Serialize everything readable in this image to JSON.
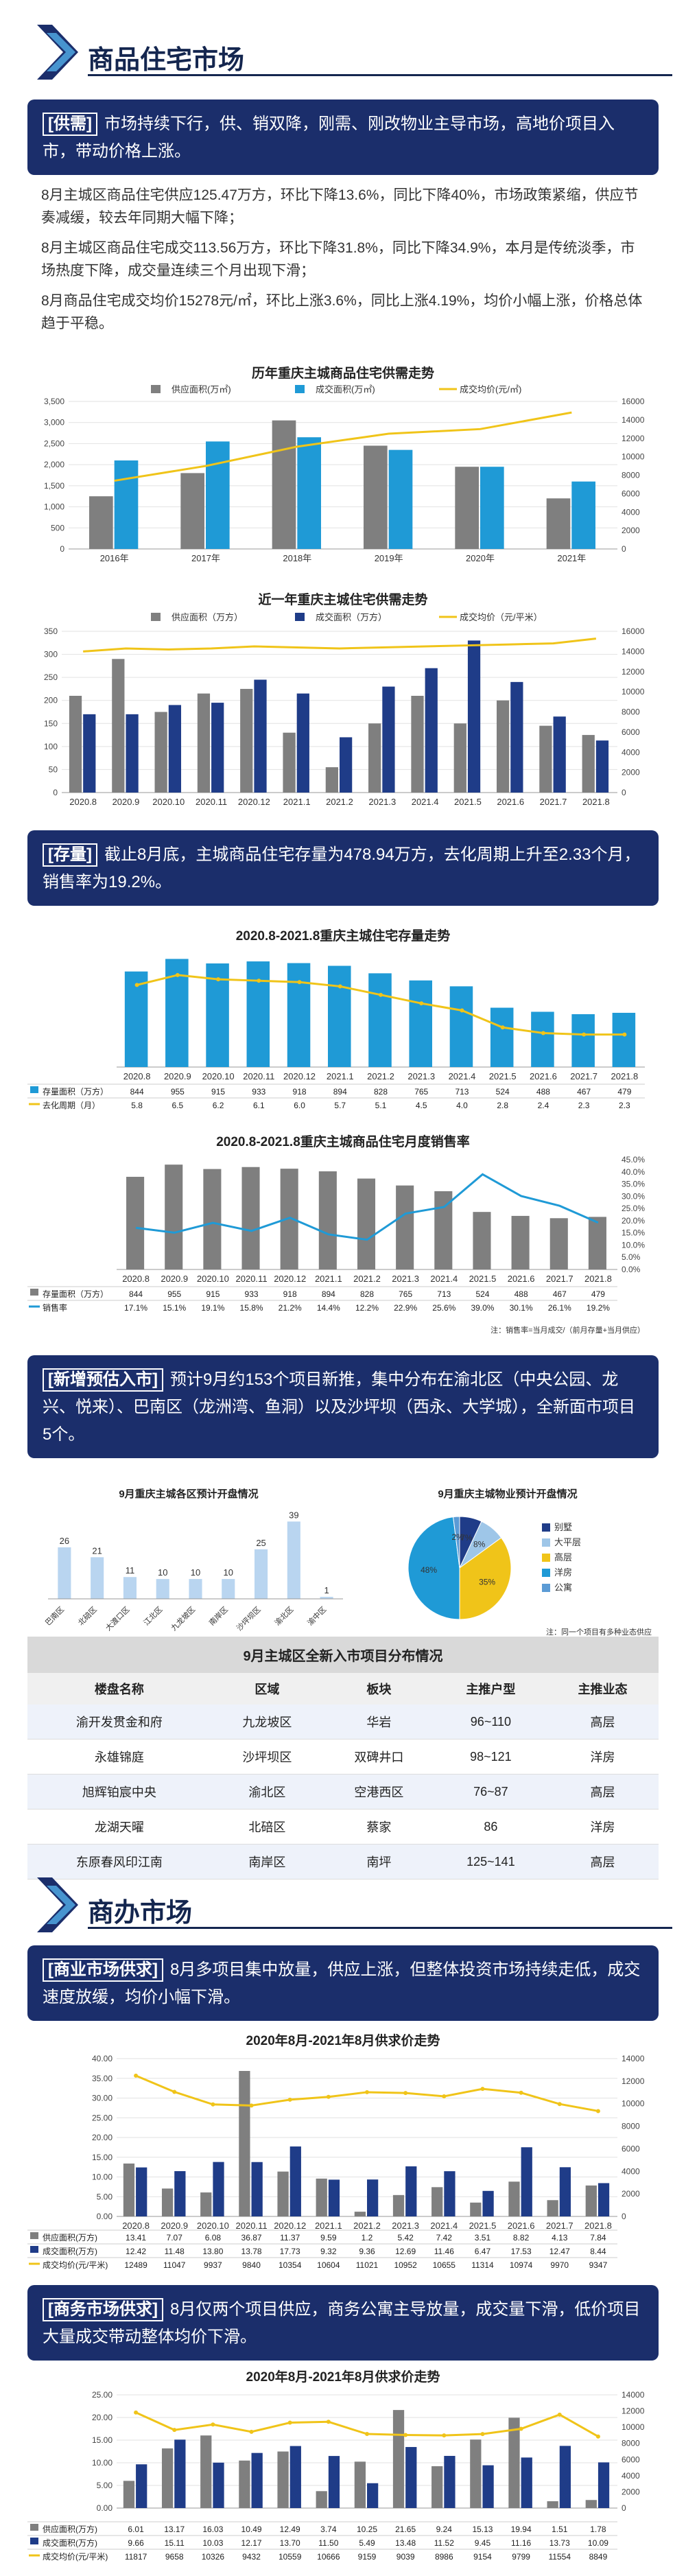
{
  "section1": {
    "title": "商品住宅市场",
    "supply_tag": "[供需]",
    "supply_text": "市场持续下行，供、销双降，刚需、刚改物业主导市场，高地价项目入市，带动价格上涨。",
    "para1": "8月主城区商品住宅供应125.47万方，环比下降13.6%，同比下降40%，市场政策紧缩，供应节奏减缓，较去年同期大幅下降；",
    "para2": "8月主城区商品住宅成交113.56万方，环比下降31.8%，同比下降34.9%，本月是传统淡季，市场热度下降，成交量连续三个月出现下滑；",
    "para3": "8月商品住宅成交均价15278元/㎡，环比上涨3.6%，同比上涨4.19%，均价小幅上涨，价格总体趋于平稳。",
    "stock_tag": "[存量]",
    "stock_text": "截止8月底，主城商品住宅存量为478.94万方，去化周期上升至2.33个月，销售率为19.2%。",
    "new_tag": "[新增预估入市]",
    "new_text": "预计9月约153个项目新推，集中分布在渝北区（中央公园、龙兴、悦来）、巴南区（龙洲湾、鱼洞）以及沙坪坝（西永、大学城），全新面市项目5个。"
  },
  "section2": {
    "title": "商办市场",
    "biz_tag": "[商业市场供求]",
    "biz_text": "8月多项目集中放量，供应上涨，但整体投资市场持续走低，成交速度放缓，均价小幅下滑。",
    "office_tag": "[商务市场供求]",
    "office_text": "8月仅两个项目供应，商务公寓主导放量，成交量下滑，低价项目大量成交带动整体均价下滑。"
  },
  "colors": {
    "navy": "#1b2e6b",
    "gray_bar": "#7f7f7f",
    "blue_bar": "#1f9ad6",
    "dark_blue_bar": "#1f3c88",
    "gold_line": "#f0c419"
  },
  "chart_data": [
    {
      "id": "yearly",
      "type": "bar",
      "title": "历年重庆主城商品住宅供需走势",
      "categories": [
        "2016年",
        "2017年",
        "2018年",
        "2019年",
        "2020年",
        "2021年"
      ],
      "series": [
        {
          "name": "供应面积(万㎡)",
          "values": [
            1250,
            1800,
            3050,
            2450,
            1950,
            1200
          ]
        },
        {
          "name": "成交面积(万㎡)",
          "values": [
            2100,
            2550,
            2650,
            2350,
            1950,
            1600
          ]
        },
        {
          "name": "成交均价(元/㎡)",
          "values": [
            7400,
            9000,
            11100,
            12500,
            13000,
            14800
          ],
          "axis": "right"
        }
      ],
      "ylim": [
        0,
        3500
      ],
      "y2lim": [
        0,
        16000
      ],
      "yticks": [
        "0",
        "500",
        "1,000",
        "1,500",
        "2,000",
        "2,500",
        "3,000",
        "3,500"
      ],
      "y2ticks": [
        "0",
        "2000",
        "4000",
        "6000",
        "8000",
        "10000",
        "12000",
        "14000",
        "16000"
      ]
    },
    {
      "id": "monthly",
      "type": "bar",
      "title": "近一年重庆主城住宅供需走势",
      "categories": [
        "2020.8",
        "2020.9",
        "2020.10",
        "2020.11",
        "2020.12",
        "2021.1",
        "2021.2",
        "2021.3",
        "2021.4",
        "2021.5",
        "2021.6",
        "2021.7",
        "2021.8"
      ],
      "series": [
        {
          "name": "供应面积（万方）",
          "values": [
            210,
            290,
            175,
            215,
            225,
            130,
            55,
            150,
            210,
            150,
            200,
            145,
            125
          ]
        },
        {
          "name": "成交面积（万方）",
          "values": [
            170,
            170,
            190,
            195,
            245,
            215,
            120,
            230,
            270,
            330,
            240,
            165,
            113
          ]
        },
        {
          "name": "成交均价（元/平米）",
          "values": [
            14000,
            14300,
            14200,
            14300,
            14500,
            14400,
            14300,
            14400,
            14500,
            14600,
            14700,
            14800,
            15278
          ],
          "axis": "right"
        }
      ],
      "ylim": [
        0,
        350
      ],
      "y2lim": [
        0,
        16000
      ],
      "yticks": [
        "0",
        "50",
        "100",
        "150",
        "200",
        "250",
        "300",
        "350"
      ],
      "y2ticks": [
        "0",
        "2000",
        "4000",
        "6000",
        "8000",
        "10000",
        "12000",
        "14000",
        "16000"
      ]
    },
    {
      "id": "stock",
      "type": "bar",
      "title": "2020.8-2021.8重庆主城住宅存量走势",
      "categories": [
        "2020.8",
        "2020.9",
        "2020.10",
        "2020.11",
        "2020.12",
        "2021.1",
        "2021.2",
        "2021.3",
        "2021.4",
        "2021.5",
        "2021.6",
        "2021.7",
        "2021.8"
      ],
      "series": [
        {
          "name": "存量面积（万方）",
          "values": [
            844,
            955,
            915,
            933,
            918,
            894,
            828,
            765,
            713,
            524,
            488,
            467,
            479
          ]
        },
        {
          "name": "去化周期（月）",
          "values": [
            5.8,
            6.5,
            6.2,
            6.1,
            6.0,
            5.7,
            5.1,
            4.5,
            4.0,
            2.8,
            2.4,
            2.3,
            2.3
          ],
          "axis": "right"
        }
      ],
      "ylim": [
        0,
        1000
      ],
      "y2lim": [
        0,
        8
      ]
    },
    {
      "id": "sales_rate",
      "type": "bar",
      "title": "2020.8-2021.8重庆主城商品住宅月度销售率",
      "categories": [
        "2020.8",
        "2020.9",
        "2020.10",
        "2020.11",
        "2020.12",
        "2021.1",
        "2021.2",
        "2021.3",
        "2021.4",
        "2021.5",
        "2021.6",
        "2021.7",
        "2021.8"
      ],
      "series": [
        {
          "name": "存量面积（万方）",
          "values": [
            844,
            955,
            915,
            933,
            918,
            894,
            828,
            765,
            713,
            524,
            488,
            467,
            479
          ]
        },
        {
          "name": "销售率",
          "values": [
            17.1,
            15.1,
            19.1,
            15.8,
            21.2,
            14.4,
            12.2,
            22.9,
            25.6,
            39.0,
            30.1,
            26.1,
            19.2
          ],
          "axis": "right"
        }
      ],
      "ylim": [
        0,
        1000
      ],
      "y2lim": [
        0,
        45
      ],
      "value_labels": [
        "17.1%",
        "15.1%",
        "19.1%",
        "15.8%",
        "21.2%",
        "14.4%",
        "12.2%",
        "22.9%",
        "25.6%",
        "39.0%",
        "30.1%",
        "26.1%",
        "19.2%"
      ],
      "y2ticks": [
        "0.0%",
        "5.0%",
        "10.0%",
        "15.0%",
        "20.0%",
        "25.0%",
        "30.0%",
        "35.0%",
        "40.0%",
        "45.0%"
      ],
      "note": "注：销售率=当月成交/（前月存量+当月供应）"
    },
    {
      "id": "district_new",
      "type": "bar",
      "title": "9月重庆主城各区预计开盘情况",
      "categories": [
        "巴南区",
        "北碚区",
        "大渡口区",
        "江北区",
        "九龙坡区",
        "南岸区",
        "沙坪坝区",
        "渝北区",
        "渝中区"
      ],
      "values": [
        26,
        21,
        11,
        10,
        10,
        10,
        25,
        39,
        1
      ],
      "ylim": [
        0,
        45
      ]
    },
    {
      "id": "type_pie",
      "type": "pie",
      "title": "9月重庆主城物业预计开盘情况",
      "labels": [
        "别墅",
        "大平层",
        "高层",
        "洋房",
        "公寓"
      ],
      "values": [
        7,
        8,
        35,
        48,
        2
      ],
      "value_labels": [
        "7%",
        "8%",
        "35%",
        "48%",
        "2%"
      ],
      "note": "注：同一个项目有多种业态供应"
    },
    {
      "id": "commercial",
      "type": "bar",
      "title": "2020年8月-2021年8月供求价走势",
      "categories": [
        "2020.8",
        "2020.9",
        "2020.10",
        "2020.11",
        "2020.12",
        "2021.1",
        "2021.2",
        "2021.3",
        "2021.4",
        "2021.5",
        "2021.6",
        "2021.7",
        "2021.8"
      ],
      "series": [
        {
          "name": "供应面积(万方)",
          "values": [
            13.41,
            7.07,
            6.08,
            36.87,
            11.37,
            9.59,
            1.2,
            5.42,
            7.42,
            3.51,
            8.82,
            4.13,
            7.84
          ]
        },
        {
          "name": "成交面积(万方)",
          "values": [
            12.42,
            11.48,
            13.8,
            13.78,
            17.73,
            9.32,
            9.36,
            12.69,
            11.46,
            6.47,
            17.53,
            12.47,
            8.44
          ]
        },
        {
          "name": "成交均价(元/平米)",
          "values": [
            12489,
            11047,
            9937,
            9840,
            10354,
            10604,
            11021,
            10952,
            10655,
            11314,
            10974,
            9970,
            9347
          ],
          "axis": "right"
        }
      ],
      "ylim": [
        0,
        40
      ],
      "y2lim": [
        0,
        14000
      ],
      "yticks": [
        "0.00",
        "5.00",
        "10.00",
        "15.00",
        "20.00",
        "25.00",
        "30.00",
        "35.00",
        "40.00"
      ],
      "y2ticks": [
        "0",
        "2000",
        "4000",
        "6000",
        "8000",
        "10000",
        "12000",
        "14000"
      ]
    },
    {
      "id": "office",
      "type": "bar",
      "title": "2020年8月-2021年8月供求价走势",
      "categories": [
        "2020.8",
        "2020.9",
        "2020.10",
        "2020.11",
        "2020.12",
        "2021.1",
        "2021.2",
        "2021.3",
        "2021.4",
        "2021.5",
        "2021.6",
        "2021.7",
        "2021.8"
      ],
      "series": [
        {
          "name": "供应面积(万方)",
          "values": [
            6.01,
            13.17,
            16.03,
            10.49,
            12.49,
            3.74,
            10.25,
            21.65,
            9.24,
            15.13,
            19.94,
            1.51,
            1.78
          ]
        },
        {
          "name": "成交面积(万方)",
          "values": [
            9.66,
            15.11,
            10.03,
            12.17,
            13.7,
            11.5,
            5.49,
            13.48,
            11.52,
            9.45,
            11.16,
            13.73,
            10.09
          ]
        },
        {
          "name": "成交均价(元/平米)",
          "values": [
            11817,
            9658,
            10326,
            9432,
            10559,
            10666,
            9159,
            9039,
            8986,
            9154,
            9799,
            11554,
            8849
          ],
          "axis": "right"
        }
      ],
      "ylim": [
        0,
        25
      ],
      "y2lim": [
        0,
        14000
      ],
      "yticks": [
        "0.00",
        "5.00",
        "10.00",
        "15.00",
        "20.00",
        "25.00"
      ],
      "y2ticks": [
        "0",
        "2000",
        "4000",
        "6000",
        "8000",
        "10000",
        "12000",
        "14000"
      ]
    }
  ],
  "chart_tables": {
    "stock": {
      "row1_label": "存量面积（万方）",
      "row1": [
        "844",
        "955",
        "915",
        "933",
        "918",
        "894",
        "828",
        "765",
        "713",
        "524",
        "488",
        "467",
        "479"
      ],
      "row2_label": "去化周期（月）",
      "row2": [
        "5.8",
        "6.5",
        "6.2",
        "6.1",
        "6.0",
        "5.7",
        "5.1",
        "4.5",
        "4.0",
        "2.8",
        "2.4",
        "2.3",
        "2.3"
      ]
    },
    "sales_rate": {
      "row1_label": "存量面积（万方）",
      "row1": [
        "844",
        "955",
        "915",
        "933",
        "918",
        "894",
        "828",
        "765",
        "713",
        "524",
        "488",
        "467",
        "479"
      ],
      "row2_label": "销售率",
      "row2": [
        "17.1%",
        "15.1%",
        "19.1%",
        "15.8%",
        "21.2%",
        "14.4%",
        "12.2%",
        "22.9%",
        "25.6%",
        "39.0%",
        "30.1%",
        "26.1%",
        "19.2%"
      ]
    },
    "commercial": {
      "row1_label": "供应面积(万方)",
      "row1": [
        "13.41",
        "7.07",
        "6.08",
        "36.87",
        "11.37",
        "9.59",
        "1.2",
        "5.42",
        "7.42",
        "3.51",
        "8.82",
        "4.13",
        "7.84"
      ],
      "row2_label": "成交面积(万方)",
      "row2": [
        "12.42",
        "11.48",
        "13.80",
        "13.78",
        "17.73",
        "9.32",
        "9.36",
        "12.69",
        "11.46",
        "6.47",
        "17.53",
        "12.47",
        "8.44"
      ],
      "row3_label": "成交均价(元/平米)",
      "row3": [
        "12489",
        "11047",
        "9937",
        "9840",
        "10354",
        "10604",
        "11021",
        "10952",
        "10655",
        "11314",
        "10974",
        "9970",
        "9347"
      ]
    },
    "office": {
      "row1_label": "供应面积(万方)",
      "row1": [
        "6.01",
        "13.17",
        "16.03",
        "10.49",
        "12.49",
        "3.74",
        "10.25",
        "21.65",
        "9.24",
        "15.13",
        "19.94",
        "1.51",
        "1.78"
      ],
      "row2_label": "成交面积(万方)",
      "row2": [
        "9.66",
        "15.11",
        "10.03",
        "12.17",
        "13.70",
        "11.50",
        "5.49",
        "13.48",
        "11.52",
        "9.45",
        "11.16",
        "13.73",
        "10.09"
      ],
      "row3_label": "成交均价(元/平米)",
      "row3": [
        "11817",
        "9658",
        "10326",
        "9432",
        "10559",
        "10666",
        "9159",
        "9039",
        "8986",
        "9154",
        "9799",
        "11554",
        "8849"
      ]
    }
  },
  "project_table": {
    "caption": "9月主城区全新入市项目分布情况",
    "headers": [
      "楼盘名称",
      "区域",
      "板块",
      "主推户型",
      "主推业态"
    ],
    "rows": [
      [
        "渝开发贯金和府",
        "九龙坡区",
        "华岩",
        "96~110",
        "高层"
      ],
      [
        "永雄锦庭",
        "沙坪坝区",
        "双碑井口",
        "98~121",
        "洋房"
      ],
      [
        "旭辉铂宸中央",
        "渝北区",
        "空港西区",
        "76~87",
        "高层"
      ],
      [
        "龙湖天曜",
        "北碚区",
        "蔡家",
        "86",
        "洋房"
      ],
      [
        "东原春风印江南",
        "南岸区",
        "南坪",
        "125~141",
        "高层"
      ]
    ]
  }
}
